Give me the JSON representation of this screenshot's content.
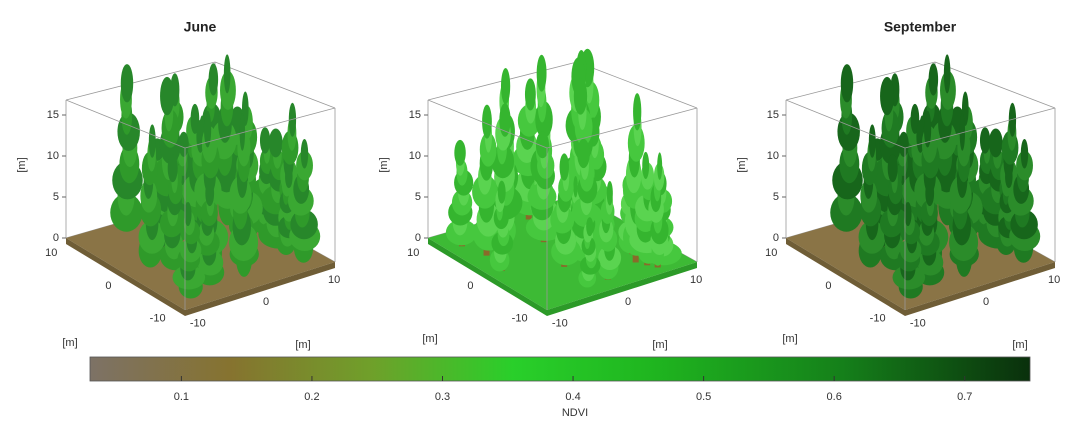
{
  "panels": [
    {
      "title": "June",
      "z_label": "[m]",
      "zticks": [
        0,
        5,
        10,
        15
      ],
      "yticks": [
        10,
        0,
        -10
      ],
      "xticks": [
        -10,
        0,
        10
      ]
    },
    {
      "z_label": "[m]",
      "zticks": [
        0,
        5,
        10,
        15
      ],
      "yticks": [
        10,
        0,
        -10
      ],
      "xticks": [
        -10,
        0,
        10
      ]
    },
    {
      "title": "September",
      "z_label": "[m]",
      "zticks": [
        0,
        5,
        10,
        15
      ],
      "yticks": [
        10,
        0,
        -10
      ],
      "xticks": [
        -10,
        0,
        10
      ]
    }
  ],
  "colorbar": {
    "label": "NDVI",
    "lim": [
      0.03,
      0.75
    ],
    "ticks": [
      0.1,
      0.2,
      0.3,
      0.4,
      0.5,
      0.6,
      0.7
    ],
    "axis_labels": [
      "[m]",
      "[m]",
      "[m]",
      "[m]",
      "[m]",
      "[m]"
    ]
  }
}
